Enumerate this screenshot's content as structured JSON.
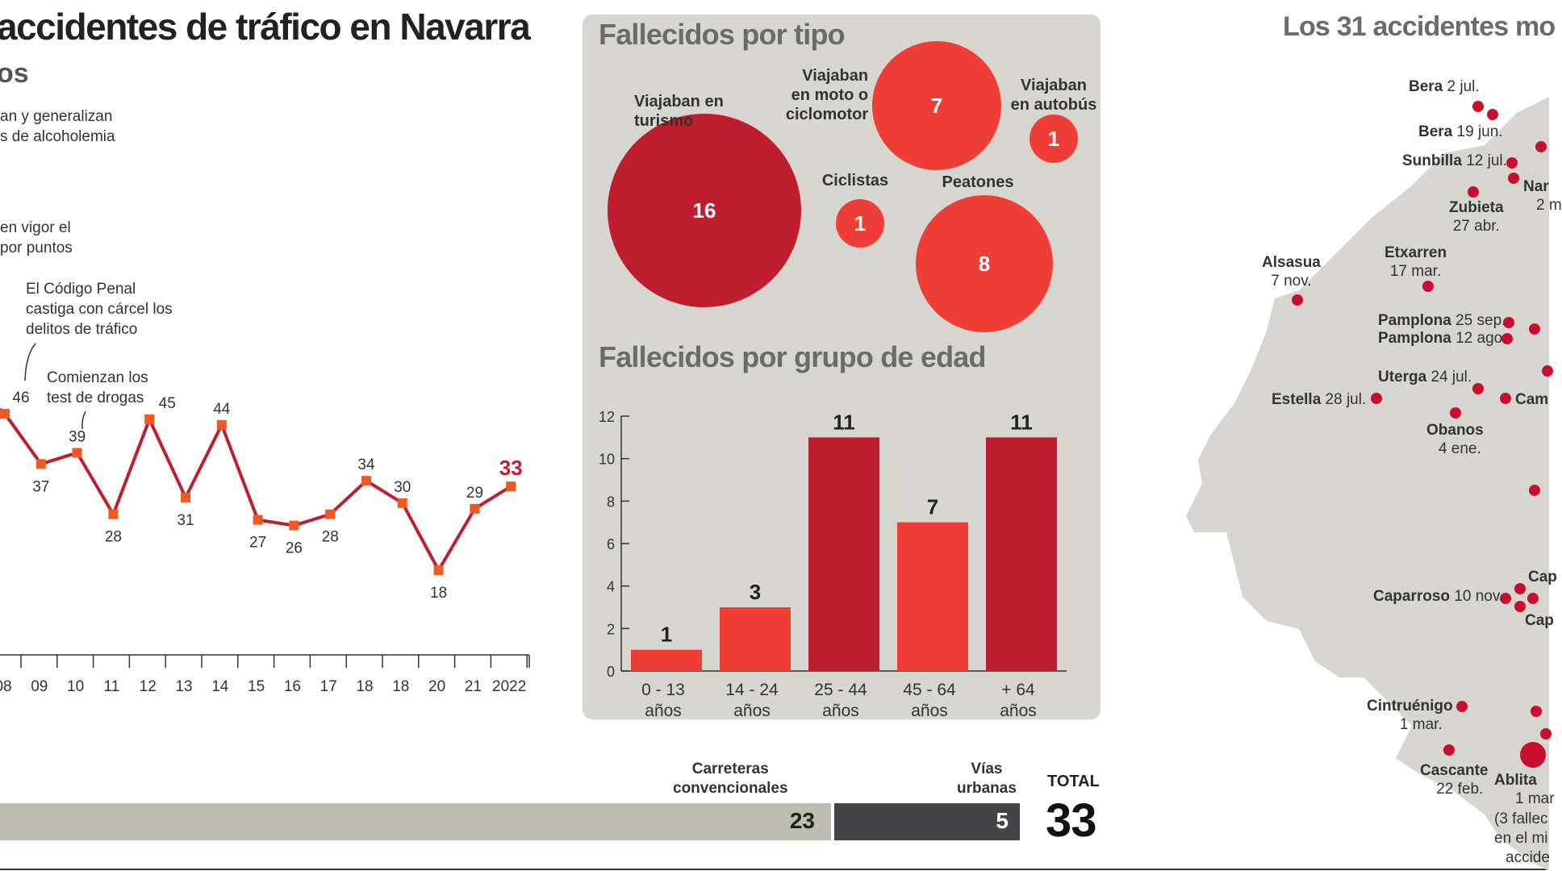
{
  "header": {
    "title": "accidentes de tráfico en Navarra",
    "subtitle": "os"
  },
  "annotations": {
    "a1": [
      "an y generalizan",
      "s de alcoholemia"
    ],
    "a2": [
      "en vigor el",
      "por puntos"
    ],
    "a3": [
      "El Código Penal",
      "castiga con cárcel los",
      "delitos de tráfico"
    ],
    "a4": [
      "Comienzan los",
      "test de drogas"
    ]
  },
  "by_type": {
    "title": "Fallecidos por tipo",
    "items": [
      {
        "label": [
          "Viajaban en",
          "turismo"
        ],
        "value": "16",
        "color": "#bf1e2e"
      },
      {
        "label": [
          "Viajaban",
          "en moto o",
          "ciclomotor"
        ],
        "value": "7",
        "color": "#ef3e36"
      },
      {
        "label": [
          "Viajaban",
          "en autobús"
        ],
        "value": "1",
        "color": "#ef3e36"
      },
      {
        "label": [
          "Ciclistas"
        ],
        "value": "1",
        "color": "#ef3e36"
      },
      {
        "label": [
          "Peatones"
        ],
        "value": "8",
        "color": "#ef3e36"
      }
    ]
  },
  "by_age": {
    "title": "Fallecidos por grupo de edad"
  },
  "roads": {
    "conv_label": [
      "Carreteras",
      "convencionales"
    ],
    "conv_value": "23",
    "urban_label": [
      "Vías",
      "urbanas"
    ],
    "urban_value": "5",
    "total_label": "TOTAL",
    "total_value": "33"
  },
  "map": {
    "title": "Los 31 accidentes mo",
    "places": [
      {
        "name": "Bera",
        "date": "2 jul."
      },
      {
        "name": "Bera",
        "date": "19 jun."
      },
      {
        "name": "Sunbilla",
        "date": "12 jul."
      },
      {
        "name": "Nar",
        "date": "2 m"
      },
      {
        "name": "Zubieta",
        "date": "27 abr."
      },
      {
        "name": "Etxarren",
        "date": "17 mar."
      },
      {
        "name": "Alsasua",
        "date": "7 nov."
      },
      {
        "name": "Pamplona",
        "date": "25 sep."
      },
      {
        "name": "Pamplona",
        "date": "12 ago."
      },
      {
        "name": "Uterga",
        "date": "24 jul."
      },
      {
        "name": "Estella",
        "date": "28 jul."
      },
      {
        "name": "Cam",
        "date": ""
      },
      {
        "name": "Obanos",
        "date": "4 ene."
      },
      {
        "name": "Cap",
        "date": ""
      },
      {
        "name": "Caparroso",
        "date": "10 nov."
      },
      {
        "name": "Cap",
        "date": ""
      },
      {
        "name": "Cintruénigo",
        "date": "1 mar."
      },
      {
        "name": "Cascante",
        "date": "22 feb."
      },
      {
        "name": "Ablita",
        "date": "1 mar"
      },
      {
        "name": "(3 fallec",
        "date": ""
      },
      {
        "name": "en el mi",
        "date": ""
      },
      {
        "name": "accide",
        "date": ""
      }
    ]
  },
  "chart_data": [
    {
      "type": "line",
      "title": "",
      "x": [
        "08",
        "09",
        "10",
        "11",
        "12",
        "13",
        "14",
        "15",
        "16",
        "17",
        "18",
        "18",
        "20",
        "21",
        "2022"
      ],
      "series": [
        {
          "values": [
            46,
            37,
            39,
            28,
            45,
            31,
            44,
            27,
            26,
            28,
            34,
            30,
            18,
            29,
            33
          ]
        }
      ],
      "highlight_last": {
        "value": 33,
        "color": "#bf1e2e"
      },
      "line_color": "#bf1e2e",
      "marker_color": "#ef5a24"
    },
    {
      "type": "bar",
      "title": "Fallecidos por grupo de edad",
      "categories": [
        [
          "0 - 13",
          "años"
        ],
        [
          "14 - 24",
          "años"
        ],
        [
          "25 - 44",
          "años"
        ],
        [
          "45 - 64",
          "años"
        ],
        [
          "+ 64",
          "años"
        ]
      ],
      "values": [
        1,
        3,
        11,
        7,
        11
      ],
      "colors": [
        "#ef3e36",
        "#ef3e36",
        "#bf1e2e",
        "#ef3e36",
        "#bf1e2e"
      ],
      "yticks": [
        0,
        2,
        4,
        6,
        8,
        10,
        12
      ],
      "ylim": [
        0,
        12
      ]
    },
    {
      "type": "bar",
      "title": "",
      "categories": [
        "Carreteras convencionales",
        "Vías urbanas"
      ],
      "values": [
        23,
        5
      ],
      "total": 33
    }
  ]
}
